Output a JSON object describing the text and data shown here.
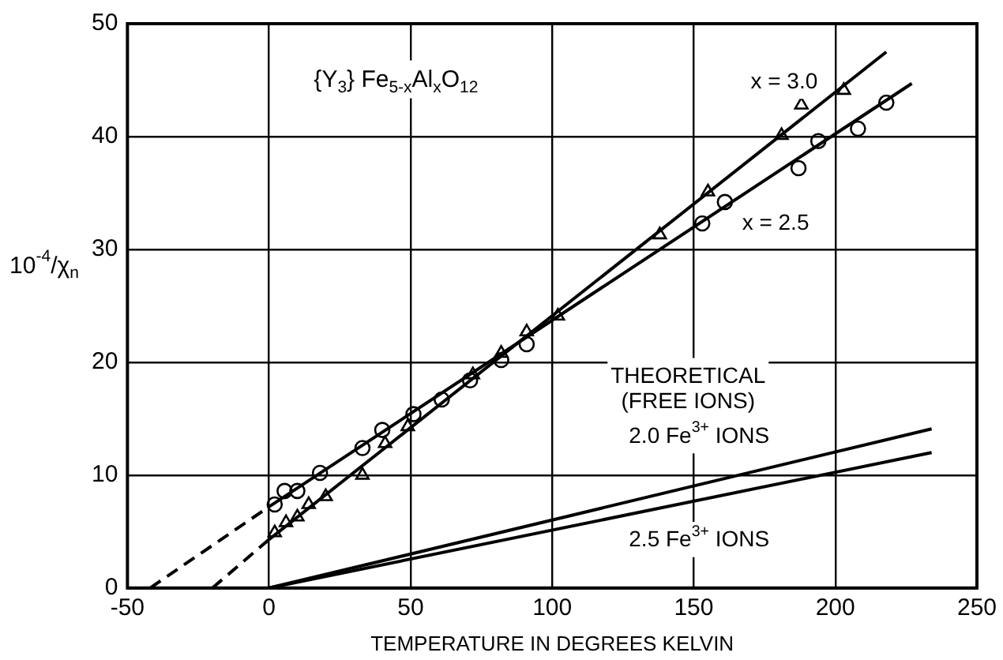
{
  "chart_data": {
    "type": "scatter",
    "title": "{Y$_{3}$} Fe$_{5-x}$Al$_{x}$O$_{12}$",
    "xlabel": "TEMPERATURE IN DEGREES KELVIN",
    "ylabel": "10$^{-4}$/χ$_{n}$",
    "xlim": [
      -50,
      250
    ],
    "xticks": [
      -50,
      0,
      50,
      100,
      150,
      200,
      250
    ],
    "ylim": [
      0,
      50
    ],
    "yticks": [
      0,
      10,
      20,
      30,
      40,
      50
    ],
    "grid": true,
    "legend": false,
    "series": [
      {
        "marker": "circle",
        "color": "#000000",
        "x": [
          2,
          5.5,
          10,
          18,
          33,
          40,
          51,
          61,
          71,
          82,
          91,
          153,
          161,
          187,
          194,
          208,
          218
        ],
        "values": [
          7.4,
          8.6,
          8.6,
          10.2,
          12.4,
          14,
          15.4,
          16.7,
          18.4,
          20.2,
          21.6,
          32.3,
          34.2,
          37.2,
          39.6,
          40.7,
          43.0
        ]
      },
      {
        "marker": "triangle",
        "color": "#000000",
        "x": [
          2,
          6,
          10,
          14,
          20,
          33,
          41,
          49,
          72,
          82,
          91,
          102,
          138,
          155,
          181,
          188,
          203
        ],
        "values": [
          4.9,
          5.8,
          6.3,
          7.4,
          8.1,
          10,
          12.8,
          14.3,
          18.9,
          20.8,
          22.7,
          24.1,
          31.3,
          35.1,
          40.1,
          42.8,
          44.1
        ]
      },
      {
        "type": "line",
        "marker": "none",
        "line_style": "dashed",
        "color": "#000000",
        "x": [
          -42,
          0
        ],
        "values": [
          0,
          7.2
        ]
      },
      {
        "type": "line",
        "marker": "none",
        "line_style": "solid",
        "color": "#000000",
        "x": [
          0,
          227
        ],
        "values": [
          7.2,
          44.7
        ]
      },
      {
        "type": "line",
        "marker": "none",
        "line_style": "dashed",
        "color": "#000000",
        "x": [
          -20,
          0
        ],
        "values": [
          0,
          4.3
        ]
      },
      {
        "type": "line",
        "marker": "none",
        "line_style": "solid",
        "color": "#000000",
        "x": [
          0,
          218
        ],
        "values": [
          4.3,
          47.5
        ]
      },
      {
        "type": "line",
        "marker": "none",
        "line_style": "solid",
        "color": "#000000",
        "x": [
          0,
          234
        ],
        "values": [
          0,
          14.1
        ]
      },
      {
        "type": "line",
        "marker": "none",
        "line_style": "solid",
        "color": "#000000",
        "x": [
          0,
          234
        ],
        "values": [
          0,
          12.0
        ]
      }
    ],
    "annotations": [
      "x = 3.0",
      "x = 2.5",
      "THEORETICAL\n(FREE IONS)",
      "2.0 Fe$^{3+}$ IONS",
      "2.5 Fe$^{3+}$ IONS"
    ]
  }
}
